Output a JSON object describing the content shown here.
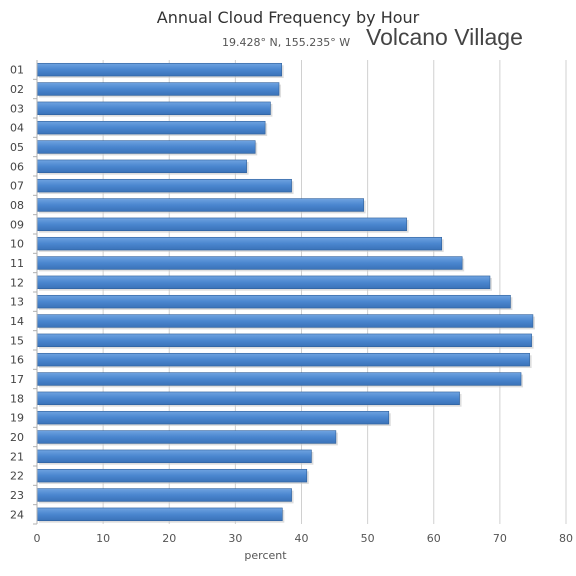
{
  "chart_data": {
    "type": "bar",
    "orientation": "horizontal",
    "title": "Annual Cloud Frequency by Hour",
    "subtitle": "19.428° N, 155.235° W",
    "location": "Volcano Village",
    "xlabel": "percent",
    "ylabel": "",
    "xlim": [
      0,
      80
    ],
    "xticks": [
      0,
      10,
      20,
      30,
      40,
      50,
      60,
      70,
      80
    ],
    "grid": true,
    "legend": "none",
    "bar_color": "#4a86cf",
    "categories": [
      "01",
      "02",
      "03",
      "04",
      "05",
      "06",
      "07",
      "08",
      "09",
      "10",
      "11",
      "12",
      "13",
      "14",
      "15",
      "16",
      "17",
      "18",
      "19",
      "20",
      "21",
      "22",
      "23",
      "24"
    ],
    "values": [
      37,
      36.6,
      35.3,
      34.5,
      33,
      31.7,
      38.5,
      49.4,
      55.9,
      61.2,
      64.3,
      68.5,
      71.6,
      75,
      74.8,
      74.5,
      73.2,
      63.9,
      53.2,
      45.2,
      41.5,
      40.8,
      38.5,
      37.1
    ]
  }
}
